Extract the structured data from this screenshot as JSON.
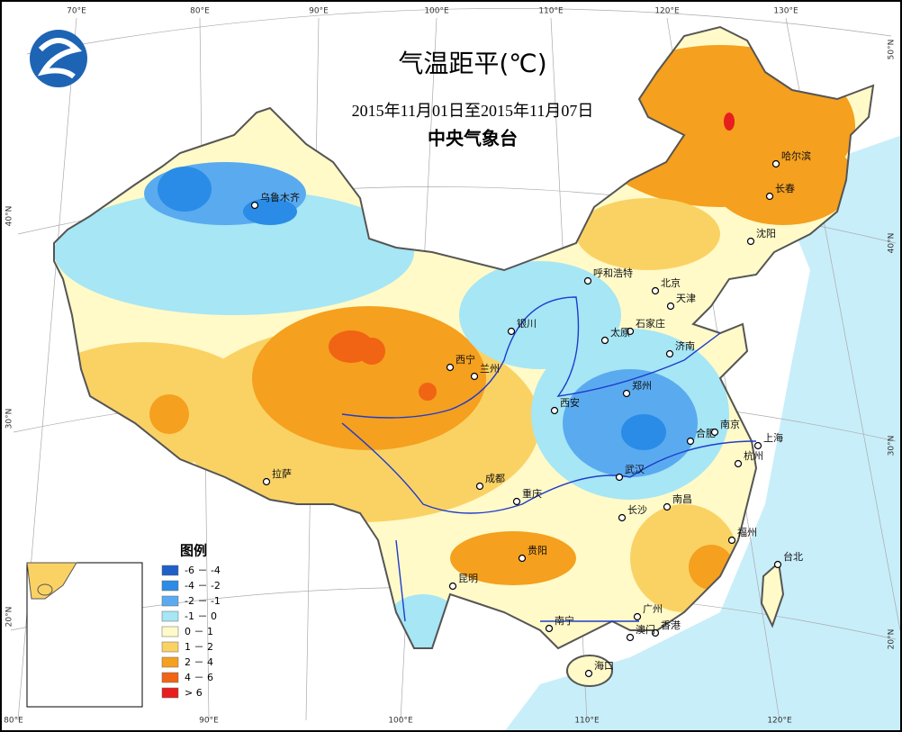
{
  "header": {
    "title": "气温距平(℃)",
    "subtitle": "2015年11月01日至2015年11月07日",
    "agency": "中央气象台"
  },
  "graticule": {
    "top": [
      "70°E",
      "80°E",
      "90°E",
      "100°E",
      "110°E",
      "120°E",
      "130°E"
    ],
    "bottom": [
      "80°E",
      "90°E",
      "100°E",
      "110°E",
      "120°E"
    ],
    "left": [
      "40°N",
      "30°N",
      "20°N"
    ],
    "right": [
      "50°N",
      "40°N",
      "30°N",
      "20°N"
    ]
  },
  "legend": {
    "title": "图例",
    "items": [
      {
        "label": "-6 － -4",
        "color": "#1f5fc8"
      },
      {
        "label": "-4 － -2",
        "color": "#2a8ce6"
      },
      {
        "label": "-2 － -1",
        "color": "#5aaaf0"
      },
      {
        "label": "-1 － 0",
        "color": "#a6e6f5"
      },
      {
        "label": "0 － 1",
        "color": "#fffac8"
      },
      {
        "label": "1 － 2",
        "color": "#fad264"
      },
      {
        "label": "2 － 4",
        "color": "#f5a01e"
      },
      {
        "label": "4 － 6",
        "color": "#f06414"
      },
      {
        "label": "> 6",
        "color": "#e61e1e"
      }
    ]
  },
  "cities": [
    "乌鲁木齐",
    "拉萨",
    "西宁",
    "兰州",
    "银川",
    "呼和浩特",
    "北京",
    "天津",
    "石家庄",
    "太原",
    "济南",
    "郑州",
    "西安",
    "成都",
    "重庆",
    "武汉",
    "合肥",
    "南京",
    "上海",
    "杭州",
    "南昌",
    "长沙",
    "贵阳",
    "昆明",
    "南宁",
    "广州",
    "香港",
    "澳门",
    "福州",
    "台北",
    "海口",
    "长春",
    "哈尔滨",
    "沈阳"
  ]
}
